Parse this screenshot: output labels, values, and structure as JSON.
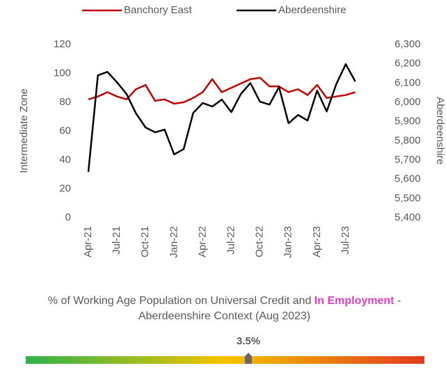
{
  "chart_data": {
    "type": "line",
    "categories": [
      "Apr-21",
      null,
      null,
      "Jul-21",
      null,
      null,
      "Oct-21",
      null,
      null,
      "Jan-22",
      null,
      null,
      "Apr-22",
      null,
      null,
      "Jul-22",
      null,
      null,
      "Oct-22",
      null,
      null,
      "Jan-23",
      null,
      null,
      "Apr-23",
      null,
      null,
      "Jul-23",
      null
    ],
    "series": [
      {
        "name": "Banchory East",
        "color": "#c00000",
        "values": [
          82,
          84,
          87,
          84,
          82,
          89,
          92,
          81,
          82,
          79,
          80,
          83,
          87,
          96,
          87,
          90,
          93,
          96,
          97,
          91,
          91,
          87,
          89,
          85,
          92,
          83,
          84,
          85,
          87
        ]
      },
      {
        "name": "Aberdeenshire",
        "color": "#000000",
        "axis": "y2",
        "values": [
          5638,
          6140,
          6158,
          6104,
          6043,
          5942,
          5869,
          5844,
          5858,
          5729,
          5757,
          5945,
          5996,
          5978,
          6014,
          5949,
          6043,
          6100,
          6003,
          5988,
          6079,
          5891,
          5934,
          5905,
          6061,
          5952,
          6093,
          6198,
          6108
        ]
      }
    ],
    "ylabel": "Intermediate Zone",
    "y2label": "Aberdeenshire",
    "ylim": [
      0,
      120
    ],
    "yticks": [
      0,
      20,
      40,
      60,
      80,
      100,
      120
    ],
    "y2lim": [
      5400,
      6300
    ],
    "y2ticks": [
      {
        "value": 5400,
        "label": "5,400"
      },
      {
        "value": 5500,
        "label": "5,500"
      },
      {
        "value": 5600,
        "label": "5,600"
      },
      {
        "value": 5700,
        "label": "5,700"
      },
      {
        "value": 5800,
        "label": "5,800"
      },
      {
        "value": 5900,
        "label": "5,900"
      },
      {
        "value": 6000,
        "label": "6,000"
      },
      {
        "value": 6100,
        "label": "6,100"
      },
      {
        "value": 6200,
        "label": "6,200"
      },
      {
        "value": 6300,
        "label": "6,300"
      }
    ],
    "legend": "top"
  },
  "caption": [
    "% of Working Age Population on Universal Credit and ",
    "In Employment",
    " - Aberdeenshire Context (Aug 2023)"
  ],
  "gauge": {
    "label": "3.5%"
  }
}
